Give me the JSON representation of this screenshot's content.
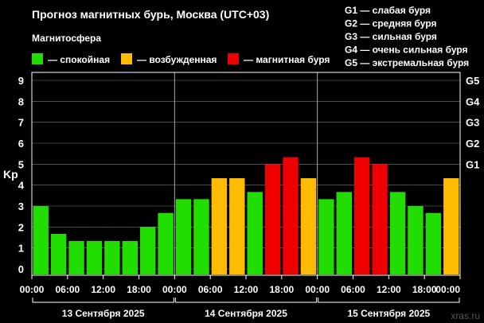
{
  "title": "Прогноз магнитных бурь, Москва (UTC+03)",
  "magnetosphere_label": "Магнитосфера",
  "status_legend": [
    {
      "text": "— спокойная",
      "color": "#22dd00"
    },
    {
      "text": "— возбужденная",
      "color": "#ffbb00"
    },
    {
      "text": "— магнитная буря",
      "color": "#ee0000"
    }
  ],
  "storm_scale": [
    "G1 — слабая буря",
    "G2 — средняя буря",
    "G3 — сильная буря",
    "G4 — очень сильная буря",
    "G5 — экстремальная буря"
  ],
  "watermark": "xras.ru",
  "colors": {
    "background": "#000000",
    "axis": "#ffffff",
    "grid": "#777777",
    "calm": "#22dd00",
    "excited": "#ffbb00",
    "storm": "#ee0000"
  },
  "chart_data": {
    "type": "bar",
    "ylabel": "Kp",
    "ylim": [
      0,
      9
    ],
    "yticks": [
      "0",
      "1",
      "2",
      "3",
      "4",
      "5",
      "6",
      "7",
      "8",
      "9"
    ],
    "right_ticks": [
      {
        "label": "G1",
        "kp": 5
      },
      {
        "label": "G2",
        "kp": 6
      },
      {
        "label": "G3",
        "kp": 7
      },
      {
        "label": "G4",
        "kp": 8
      },
      {
        "label": "G5",
        "kp": 9
      }
    ],
    "xticks": [
      "00:00",
      "06:00",
      "12:00",
      "18:00",
      "00:00",
      "06:00",
      "12:00",
      "18:00",
      "00:00",
      "06:00",
      "12:00",
      "18:00",
      "00:00"
    ],
    "days": [
      "13 Сентября 2025",
      "14 Сентября 2025",
      "15 Сентября 2025"
    ],
    "bar_interval_hours": 3,
    "values": [
      3.0,
      1.67,
      1.33,
      1.33,
      1.33,
      1.33,
      2.0,
      2.67,
      3.33,
      3.33,
      4.33,
      4.33,
      3.67,
      5.0,
      5.33,
      4.33,
      3.33,
      3.67,
      5.33,
      5.0,
      3.67,
      3.0,
      2.67,
      4.33
    ],
    "status": [
      "calm",
      "calm",
      "calm",
      "calm",
      "calm",
      "calm",
      "calm",
      "calm",
      "calm",
      "calm",
      "excited",
      "excited",
      "calm",
      "storm",
      "storm",
      "excited",
      "calm",
      "calm",
      "storm",
      "storm",
      "calm",
      "calm",
      "calm",
      "excited"
    ]
  }
}
